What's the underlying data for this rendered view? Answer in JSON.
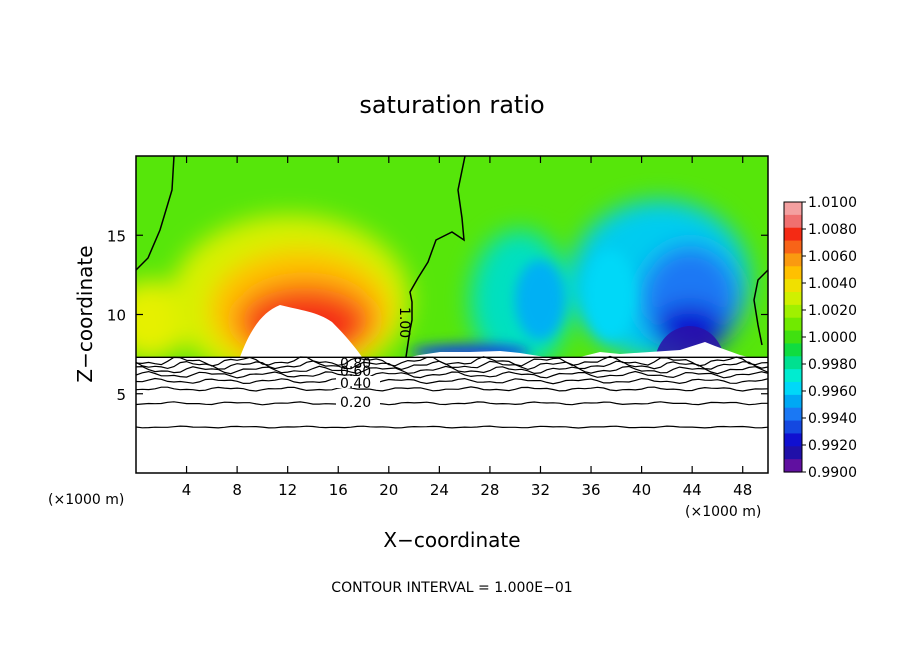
{
  "chart_data": {
    "type": "heatmap",
    "title": "saturation ratio",
    "xlabel": "X−coordinate",
    "ylabel": "Z−coordinate",
    "x_unit": "(×1000 m)",
    "y_unit": "(×1000 m)",
    "xlim": [
      0,
      50
    ],
    "ylim": [
      0,
      20
    ],
    "x_ticks": [
      4,
      8,
      12,
      16,
      20,
      24,
      28,
      32,
      36,
      40,
      44,
      48
    ],
    "x_tick_labels": [
      "4",
      "8",
      "12",
      "16",
      "20",
      "24",
      "28",
      "32",
      "36",
      "40",
      "44",
      "48"
    ],
    "y_ticks": [
      5,
      10,
      15
    ],
    "y_tick_labels": [
      "5",
      "10",
      "15"
    ],
    "colorbar": {
      "range": [
        0.99,
        1.01
      ],
      "labels": [
        "1.0100",
        "1.0080",
        "1.0060",
        "1.0040",
        "1.0020",
        "1.0000",
        "0.9980",
        "0.9960",
        "0.9940",
        "0.9920",
        "0.9900"
      ],
      "colors": [
        "#f4a0a0",
        "#f07070",
        "#f42a14",
        "#f86418",
        "#fa9a10",
        "#ffc000",
        "#f0e000",
        "#d0f000",
        "#a0f000",
        "#70ea00",
        "#40e010",
        "#10dc40",
        "#00e090",
        "#00ecd0",
        "#00d8f8",
        "#00a8f4",
        "#1a78f4",
        "#1448e0",
        "#1010d0",
        "#2010a8",
        "#6010a0"
      ]
    },
    "boundary_z": 7.3,
    "field_features": [
      {
        "name": "supersaturated",
        "x": 13,
        "z": 12,
        "value": 1.0075
      },
      {
        "name": "subsaturated",
        "x": 43,
        "z": 10,
        "value": 0.9915
      }
    ],
    "contour_line_labels": [
      "1.00",
      "0.20",
      "0.40",
      "0.60",
      "0.80"
    ],
    "lower_contour_z": [
      2.9,
      4.4,
      5.3,
      5.8,
      6.2,
      6.5,
      6.8,
      7.05
    ],
    "footer": "CONTOUR INTERVAL = 1.000E−01"
  }
}
